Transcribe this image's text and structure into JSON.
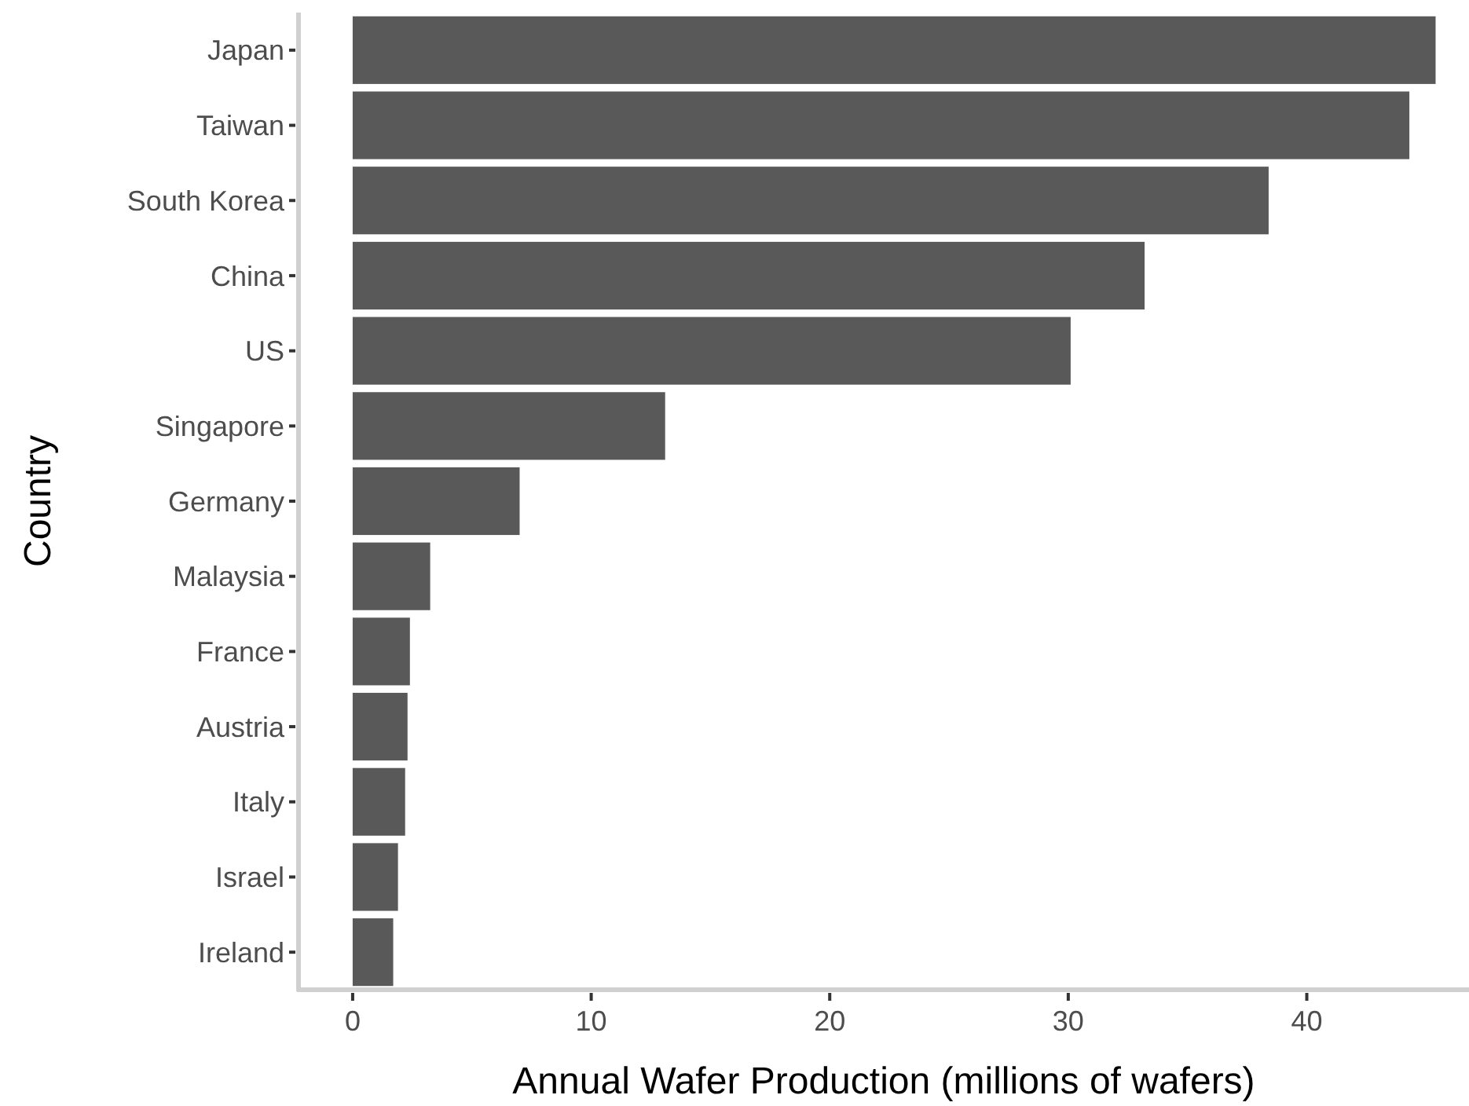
{
  "chart_data": {
    "type": "bar",
    "orientation": "horizontal",
    "xlabel": "Annual Wafer Production (millions of wafers)",
    "ylabel": "Country",
    "categories": [
      "Japan",
      "Taiwan",
      "South Korea",
      "China",
      "US",
      "Singapore",
      "Germany",
      "Malaysia",
      "France",
      "Austria",
      "Italy",
      "Israel",
      "Ireland"
    ],
    "values": [
      45.4,
      44.3,
      38.4,
      33.2,
      30.1,
      13.1,
      7.0,
      3.25,
      2.4,
      2.3,
      2.2,
      1.9,
      1.7
    ],
    "color": "#595959",
    "xlim": [
      -2.27,
      46.8
    ],
    "xticks": [
      0,
      10,
      20,
      30,
      40
    ],
    "grid": false
  }
}
